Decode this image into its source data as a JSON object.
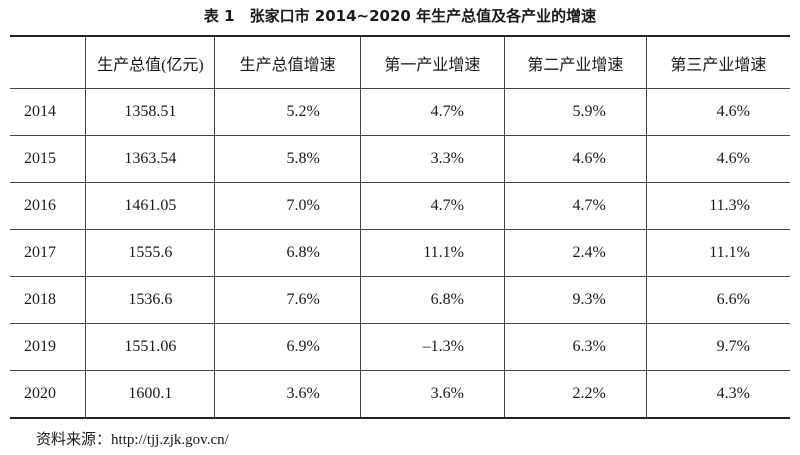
{
  "title": "表 1　张家口市 2014~2020 年生产总值及各产业的增速",
  "table": {
    "header": [
      "",
      "生产总值(亿元)",
      "生产总值增速",
      "第一产业增速",
      "第二产业增速",
      "第三产业增速"
    ],
    "rows": [
      [
        "2014",
        "1358.51",
        "5.2%",
        "4.7%",
        "5.9%",
        "4.6%"
      ],
      [
        "2015",
        "1363.54",
        "5.8%",
        "3.3%",
        "4.6%",
        "4.6%"
      ],
      [
        "2016",
        "1461.05",
        "7.0%",
        "4.7%",
        "4.7%",
        "11.3%"
      ],
      [
        "2017",
        "1555.6",
        "6.8%",
        "11.1%",
        "2.4%",
        "11.1%"
      ],
      [
        "2018",
        "1536.6",
        "7.6%",
        "6.8%",
        "9.3%",
        "6.6%"
      ],
      [
        "2019",
        "1551.06",
        "6.9%",
        "–1.3%",
        "6.3%",
        "9.7%"
      ],
      [
        "2020",
        "1600.1",
        "3.6%",
        "3.6%",
        "2.2%",
        "4.3%"
      ]
    ]
  },
  "source": "资料来源：http://tjj.zjk.gov.cn/"
}
